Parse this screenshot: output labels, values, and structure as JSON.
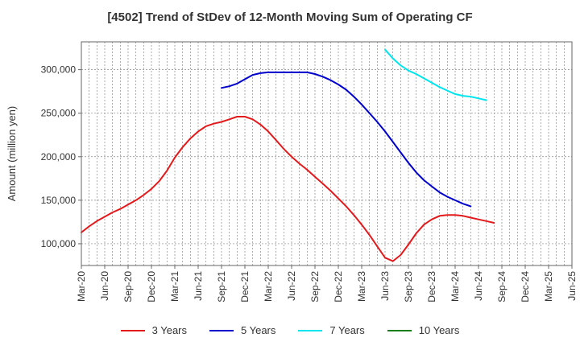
{
  "chart_data": {
    "type": "line",
    "title": "[4502]  Trend of StDev of 12-Month Moving Sum of Operating CF",
    "xlabel": "",
    "ylabel": "Amount (million yen)",
    "ylim": [
      75000,
      332000
    ],
    "yticks": [
      100000,
      150000,
      200000,
      250000,
      300000
    ],
    "ytick_labels": [
      "100,000",
      "150,000",
      "200,000",
      "250,000",
      "300,000"
    ],
    "x_tick_labels": [
      "Mar-20",
      "Jun-20",
      "Sep-20",
      "Dec-20",
      "Mar-21",
      "Jun-21",
      "Sep-21",
      "Dec-21",
      "Mar-22",
      "Jun-22",
      "Sep-22",
      "Dec-22",
      "Mar-23",
      "Jun-23",
      "Sep-23",
      "Dec-23",
      "Mar-24",
      "Jun-24",
      "Sep-24",
      "Dec-24",
      "Mar-25",
      "Jun-25"
    ],
    "grid": true,
    "legend_position": "bottom",
    "series": [
      {
        "name": "3 Years",
        "color": "#e31a1c",
        "start_index": 0,
        "values": [
          113000,
          120000,
          126000,
          131000,
          136000,
          140000,
          145000,
          150000,
          156000,
          163000,
          172000,
          184000,
          199000,
          211000,
          221000,
          229000,
          235000,
          238000,
          240000,
          243000,
          246000,
          246000,
          243000,
          237000,
          229000,
          219000,
          209000,
          200000,
          192000,
          185000,
          177000,
          169000,
          161000,
          152000,
          143000,
          133000,
          122000,
          110000,
          97000,
          84000,
          80000,
          87000,
          99000,
          112000,
          122000,
          128000,
          132000,
          133000,
          133000,
          132000,
          130000,
          128000,
          126000,
          124000
        ]
      },
      {
        "name": "5 Years",
        "color": "#0000cc",
        "start_index": 18,
        "values": [
          279000,
          281000,
          284000,
          289000,
          294000,
          296000,
          297000,
          297000,
          297000,
          297000,
          297000,
          297000,
          295000,
          292000,
          288000,
          283000,
          277000,
          269000,
          260000,
          250000,
          240000,
          229000,
          217000,
          205000,
          193000,
          182000,
          173000,
          166000,
          159000,
          154000,
          150000,
          146000,
          143000
        ]
      },
      {
        "name": "7 Years",
        "color": "#00e5ee",
        "start_index": 39,
        "values": [
          323000,
          313000,
          305000,
          299000,
          295000,
          290000,
          285000,
          280000,
          276000,
          272000,
          270000,
          269000,
          267000,
          265000
        ]
      },
      {
        "name": "10 Years",
        "color": "#1a7f1a",
        "start_index": 0,
        "values": []
      }
    ]
  }
}
